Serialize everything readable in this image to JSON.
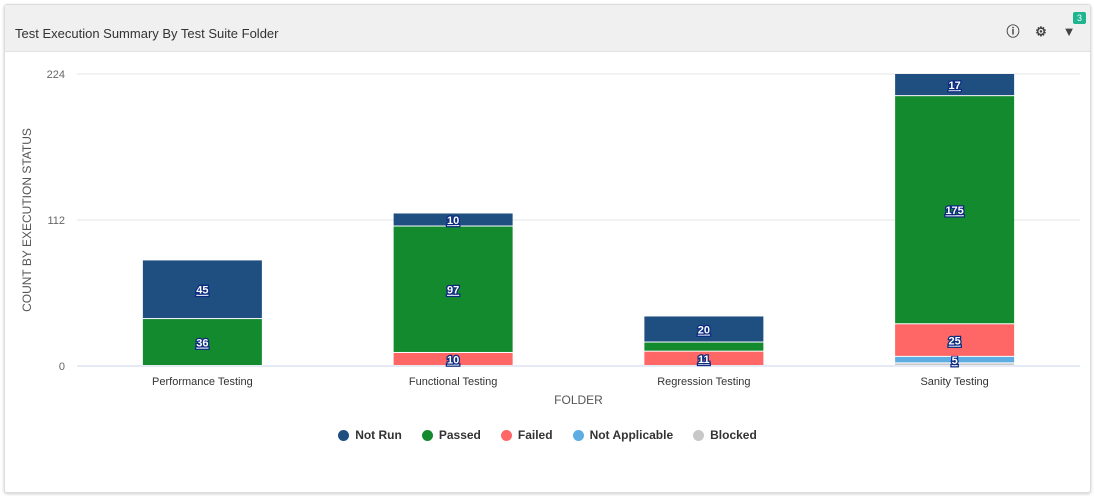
{
  "widget": {
    "title": "Test Execution Summary By Test Suite Folder",
    "filter_count": "3",
    "icons": [
      "info-icon",
      "gear-icon",
      "filter-icon"
    ]
  },
  "chart_data": {
    "type": "bar",
    "stacked": true,
    "xlabel": "FOLDER",
    "ylabel": "COUNT BY EXECUTION STATUS",
    "ylim": [
      0,
      224
    ],
    "yticks": [
      "0",
      "112",
      "224"
    ],
    "categories": [
      "Performance Testing",
      "Functional Testing",
      "Regression Testing",
      "Sanity Testing"
    ],
    "series": [
      {
        "name": "Blocked",
        "color": "#c8c8c8",
        "values": [
          0,
          0,
          0,
          2
        ],
        "labels": [
          false,
          false,
          false,
          false
        ]
      },
      {
        "name": "Not Applicable",
        "color": "#5dade2",
        "values": [
          0,
          0,
          0,
          5
        ],
        "labels": [
          false,
          false,
          false,
          true
        ]
      },
      {
        "name": "Failed",
        "color": "#ff6666",
        "values": [
          0,
          10,
          11,
          25
        ],
        "labels": [
          false,
          true,
          true,
          true
        ]
      },
      {
        "name": "Passed",
        "color": "#148a2e",
        "values": [
          36,
          97,
          7,
          175
        ],
        "labels": [
          true,
          true,
          false,
          true
        ]
      },
      {
        "name": "Not Run",
        "color": "#1f4e80",
        "values": [
          45,
          10,
          20,
          17
        ],
        "labels": [
          true,
          true,
          true,
          true
        ]
      }
    ],
    "legend": {
      "placement": "bottom",
      "order": [
        "Not Run",
        "Passed",
        "Failed",
        "Not Applicable",
        "Blocked"
      ]
    },
    "grid": true
  }
}
